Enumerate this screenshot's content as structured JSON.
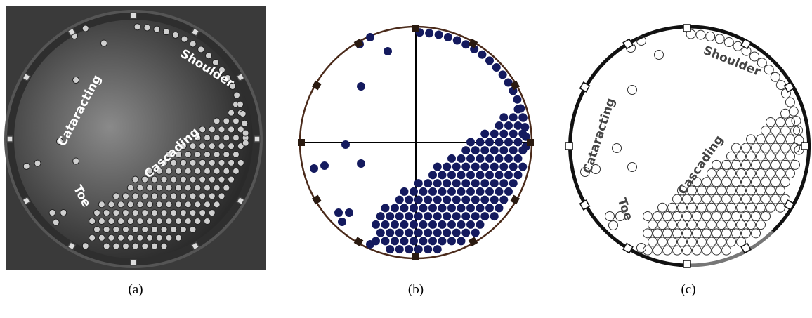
{
  "panels": [
    {
      "label": "(a)",
      "regions": [
        "Cataracting",
        "Shoulder",
        "Cascading",
        "Toe"
      ]
    },
    {
      "label": "(b)"
    },
    {
      "label": "(c)",
      "regions": [
        "Cataracting",
        "Shoulder",
        "Cascading",
        "Toe"
      ]
    }
  ]
}
